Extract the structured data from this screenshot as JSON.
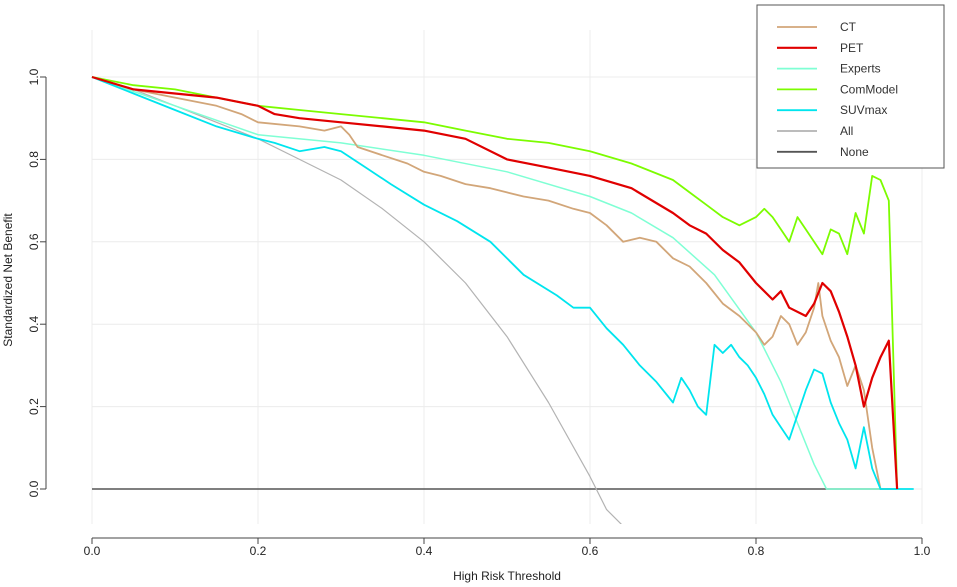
{
  "chart_data": {
    "type": "line",
    "title": "",
    "xlabel": "High Risk Threshold",
    "ylabel": "Standardized Net Benefit",
    "xlim": [
      0,
      1
    ],
    "ylim": [
      -0.09,
      1.04
    ],
    "xticks": [
      0.0,
      0.2,
      0.4,
      0.6,
      0.8,
      1.0
    ],
    "xtick_labels": [
      "0.0",
      "0.2",
      "0.4",
      "0.6",
      "0.8",
      "1.0"
    ],
    "yticks": [
      0.0,
      0.2,
      0.4,
      0.6,
      0.8,
      1.0
    ],
    "ytick_labels": [
      "0.0",
      "0.2",
      "0.4",
      "0.6",
      "0.8",
      "1.0"
    ],
    "grid": true,
    "legend_position": "top-right",
    "series": [
      {
        "name": "CT",
        "color": "#d2a679",
        "x": [
          0.0,
          0.05,
          0.1,
          0.15,
          0.18,
          0.2,
          0.25,
          0.28,
          0.3,
          0.31,
          0.32,
          0.35,
          0.38,
          0.4,
          0.42,
          0.45,
          0.48,
          0.5,
          0.52,
          0.55,
          0.58,
          0.6,
          0.62,
          0.64,
          0.66,
          0.68,
          0.7,
          0.72,
          0.74,
          0.76,
          0.78,
          0.8,
          0.81,
          0.82,
          0.83,
          0.84,
          0.85,
          0.86,
          0.87,
          0.875,
          0.88,
          0.89,
          0.9,
          0.91,
          0.92,
          0.93,
          0.94,
          0.95,
          0.96
        ],
        "y": [
          1.0,
          0.97,
          0.95,
          0.93,
          0.91,
          0.89,
          0.88,
          0.87,
          0.88,
          0.86,
          0.83,
          0.81,
          0.79,
          0.77,
          0.76,
          0.74,
          0.73,
          0.72,
          0.71,
          0.7,
          0.68,
          0.67,
          0.64,
          0.6,
          0.61,
          0.6,
          0.56,
          0.54,
          0.5,
          0.45,
          0.42,
          0.38,
          0.35,
          0.37,
          0.42,
          0.4,
          0.35,
          0.38,
          0.44,
          0.5,
          0.42,
          0.36,
          0.32,
          0.25,
          0.3,
          0.24,
          0.1,
          0.0,
          0.0
        ]
      },
      {
        "name": "PET",
        "color": "#e00000",
        "x": [
          0.0,
          0.05,
          0.1,
          0.15,
          0.2,
          0.22,
          0.25,
          0.3,
          0.35,
          0.4,
          0.45,
          0.5,
          0.55,
          0.6,
          0.65,
          0.7,
          0.72,
          0.74,
          0.76,
          0.78,
          0.8,
          0.82,
          0.83,
          0.84,
          0.86,
          0.87,
          0.88,
          0.89,
          0.9,
          0.91,
          0.92,
          0.93,
          0.94,
          0.95,
          0.96,
          0.97
        ],
        "y": [
          1.0,
          0.97,
          0.96,
          0.95,
          0.93,
          0.91,
          0.9,
          0.89,
          0.88,
          0.87,
          0.85,
          0.8,
          0.78,
          0.76,
          0.73,
          0.67,
          0.64,
          0.62,
          0.58,
          0.55,
          0.5,
          0.46,
          0.48,
          0.44,
          0.42,
          0.45,
          0.5,
          0.48,
          0.43,
          0.37,
          0.3,
          0.2,
          0.27,
          0.32,
          0.36,
          0.0
        ]
      },
      {
        "name": "Experts",
        "color": "#7fffd4",
        "x": [
          0.0,
          0.1,
          0.2,
          0.3,
          0.4,
          0.5,
          0.6,
          0.65,
          0.7,
          0.75,
          0.8,
          0.83,
          0.85,
          0.87,
          0.885,
          0.9,
          0.95
        ],
        "y": [
          1.0,
          0.93,
          0.86,
          0.84,
          0.81,
          0.77,
          0.71,
          0.67,
          0.61,
          0.52,
          0.38,
          0.26,
          0.16,
          0.06,
          0.0,
          0.0,
          0.0
        ]
      },
      {
        "name": "ComModel",
        "color": "#7cfc00",
        "x": [
          0.0,
          0.05,
          0.1,
          0.15,
          0.2,
          0.25,
          0.3,
          0.35,
          0.4,
          0.45,
          0.5,
          0.55,
          0.6,
          0.65,
          0.7,
          0.72,
          0.74,
          0.76,
          0.78,
          0.8,
          0.81,
          0.82,
          0.83,
          0.84,
          0.85,
          0.86,
          0.87,
          0.88,
          0.89,
          0.9,
          0.91,
          0.92,
          0.93,
          0.94,
          0.95,
          0.96,
          0.97
        ],
        "y": [
          1.0,
          0.98,
          0.97,
          0.95,
          0.93,
          0.92,
          0.91,
          0.9,
          0.89,
          0.87,
          0.85,
          0.84,
          0.82,
          0.79,
          0.75,
          0.72,
          0.69,
          0.66,
          0.64,
          0.66,
          0.68,
          0.66,
          0.63,
          0.6,
          0.66,
          0.63,
          0.6,
          0.57,
          0.63,
          0.62,
          0.57,
          0.67,
          0.62,
          0.76,
          0.75,
          0.7,
          0.0
        ]
      },
      {
        "name": "SUVmax",
        "color": "#00e5ee",
        "x": [
          0.0,
          0.05,
          0.1,
          0.15,
          0.2,
          0.22,
          0.25,
          0.28,
          0.3,
          0.33,
          0.36,
          0.4,
          0.44,
          0.48,
          0.52,
          0.56,
          0.58,
          0.6,
          0.62,
          0.64,
          0.66,
          0.68,
          0.7,
          0.71,
          0.72,
          0.73,
          0.74,
          0.75,
          0.76,
          0.77,
          0.78,
          0.79,
          0.8,
          0.81,
          0.82,
          0.83,
          0.84,
          0.85,
          0.86,
          0.87,
          0.88,
          0.89,
          0.9,
          0.91,
          0.92,
          0.93,
          0.94,
          0.95,
          0.97,
          0.99
        ],
        "y": [
          1.0,
          0.96,
          0.92,
          0.88,
          0.85,
          0.84,
          0.82,
          0.83,
          0.82,
          0.78,
          0.74,
          0.69,
          0.65,
          0.6,
          0.52,
          0.47,
          0.44,
          0.44,
          0.39,
          0.35,
          0.3,
          0.26,
          0.21,
          0.27,
          0.24,
          0.2,
          0.18,
          0.35,
          0.33,
          0.35,
          0.32,
          0.3,
          0.27,
          0.23,
          0.18,
          0.15,
          0.12,
          0.18,
          0.24,
          0.29,
          0.28,
          0.21,
          0.16,
          0.12,
          0.05,
          0.15,
          0.05,
          0.0,
          0.0,
          0.0
        ]
      },
      {
        "name": "All",
        "color": "#b3b3b3",
        "x": [
          0.0,
          0.05,
          0.1,
          0.15,
          0.2,
          0.25,
          0.3,
          0.35,
          0.4,
          0.45,
          0.5,
          0.55,
          0.6,
          0.62,
          0.64
        ],
        "y": [
          1.0,
          0.97,
          0.93,
          0.89,
          0.85,
          0.8,
          0.75,
          0.68,
          0.6,
          0.5,
          0.37,
          0.21,
          0.03,
          -0.05,
          -0.09
        ]
      },
      {
        "name": "None",
        "color": "#555555",
        "x": [
          0.0,
          0.97
        ],
        "y": [
          0.0,
          0.0
        ]
      }
    ]
  }
}
